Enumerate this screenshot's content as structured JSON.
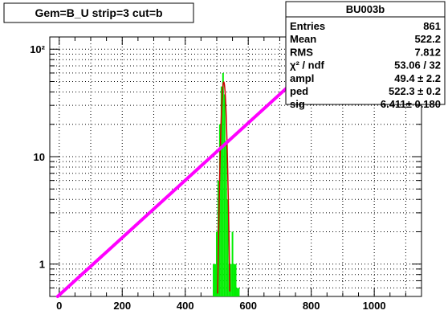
{
  "title": "Gem=B_U strip=3 cut=b",
  "stats": {
    "name": "BU003b",
    "rows": [
      {
        "label": "Entries",
        "value": "861"
      },
      {
        "label": "Mean",
        "value": "522.2"
      },
      {
        "label": "RMS",
        "value": "7.812"
      },
      {
        "label": "χ² / ndf",
        "value": "53.06 / 32"
      },
      {
        "label": "ampl",
        "value": "49.4 ± 2.2"
      },
      {
        "label": "ped",
        "value": "522.3 ± 0.2"
      },
      {
        "label": "sig",
        "value": "6.411± 0.180"
      }
    ]
  },
  "chart_data": {
    "type": "line",
    "title": "Gem=B_U strip=3 cut=b",
    "xlabel": "",
    "ylabel": "",
    "xlim": [
      -30,
      1150
    ],
    "ylim": [
      0.5,
      130
    ],
    "yscale": "log",
    "grid": true,
    "x_ticks": [
      0,
      200,
      400,
      600,
      800,
      1000
    ],
    "x_tick_labels": [
      "0",
      "200",
      "400",
      "600",
      "800",
      "1000"
    ],
    "y_ticks": [
      1,
      10,
      100
    ],
    "y_tick_labels": [
      "1",
      "10",
      "10²"
    ],
    "colors": {
      "histogram": "#00ee00",
      "fit": "#cc0000",
      "line": "#ff00ff",
      "axes": "#000000"
    },
    "series": [
      {
        "kind": "histogram",
        "x": [
          490,
          495,
          500,
          505,
          510,
          515,
          520,
          525,
          530,
          535,
          540,
          545,
          550,
          555,
          560,
          565,
          570
        ],
        "values": [
          1,
          1,
          2,
          6,
          20,
          45,
          60,
          38,
          14,
          4,
          1,
          1,
          2,
          1,
          1,
          0.6,
          0.6
        ]
      },
      {
        "kind": "gaussian_fit",
        "ampl": 49.4,
        "ped": 522.3,
        "sig": 6.411,
        "x_range": [
          490,
          555
        ]
      },
      {
        "kind": "straight_line",
        "x": [
          -5,
          900
        ],
        "values": [
          0.5,
          130
        ]
      }
    ]
  }
}
